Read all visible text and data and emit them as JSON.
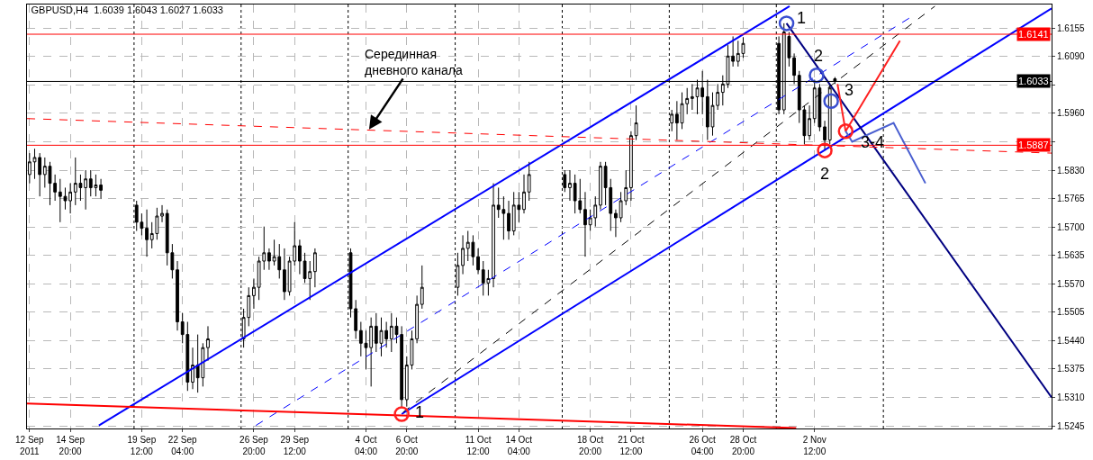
{
  "chart_data": {
    "type": "candlestick",
    "title": "GBPUSD,H4  1.6039 1.6043 1.6027 1.6033",
    "x": [
      "2011-09-12T04:00",
      "2011-09-12T12:00",
      "2011-09-12T20:00",
      "2011-09-13T04:00",
      "2011-09-13T12:00",
      "2011-09-13T20:00",
      "2011-09-14T04:00",
      "2011-09-14T12:00",
      "2011-09-14T20:00",
      "2011-09-15T04:00",
      "2011-09-15T12:00",
      "2011-09-15T20:00",
      "2011-09-16T04:00",
      "2011-09-16T12:00",
      "2011-09-16T20:00",
      "2011-09-19T04:00",
      "2011-09-19T12:00",
      "2011-09-19T20:00",
      "2011-09-20T04:00",
      "2011-09-20T12:00",
      "2011-09-20T20:00",
      "2011-09-21T04:00",
      "2011-09-21T12:00",
      "2011-09-21T20:00",
      "2011-09-22T04:00",
      "2011-09-22T12:00",
      "2011-09-22T20:00",
      "2011-09-23T04:00",
      "2011-09-23T12:00",
      "2011-09-23T20:00",
      "2011-09-26T04:00",
      "2011-09-26T12:00",
      "2011-09-26T20:00",
      "2011-09-27T04:00",
      "2011-09-27T12:00",
      "2011-09-27T20:00",
      "2011-09-28T04:00",
      "2011-09-28T12:00",
      "2011-09-28T20:00",
      "2011-09-29T04:00",
      "2011-09-29T12:00",
      "2011-09-29T20:00",
      "2011-09-30T04:00",
      "2011-09-30T12:00",
      "2011-09-30T20:00",
      "2011-10-03T04:00",
      "2011-10-03T12:00",
      "2011-10-03T20:00",
      "2011-10-04T04:00",
      "2011-10-04T12:00",
      "2011-10-04T20:00",
      "2011-10-05T04:00",
      "2011-10-05T12:00",
      "2011-10-05T20:00",
      "2011-10-06T04:00",
      "2011-10-06T12:00",
      "2011-10-06T20:00",
      "2011-10-07T04:00",
      "2011-10-07T12:00",
      "2011-10-07T20:00",
      "2011-10-10T04:00",
      "2011-10-10T12:00",
      "2011-10-10T20:00",
      "2011-10-11T04:00",
      "2011-10-11T12:00",
      "2011-10-11T20:00",
      "2011-10-12T04:00",
      "2011-10-12T12:00",
      "2011-10-12T20:00",
      "2011-10-13T04:00",
      "2011-10-13T12:00",
      "2011-10-13T20:00",
      "2011-10-14T04:00",
      "2011-10-14T12:00",
      "2011-10-14T20:00",
      "2011-10-17T04:00",
      "2011-10-17T12:00",
      "2011-10-17T20:00",
      "2011-10-18T04:00",
      "2011-10-18T12:00",
      "2011-10-18T20:00",
      "2011-10-19T04:00",
      "2011-10-19T12:00",
      "2011-10-19T20:00",
      "2011-10-20T04:00",
      "2011-10-20T12:00",
      "2011-10-20T20:00",
      "2011-10-21T04:00",
      "2011-10-21T12:00",
      "2011-10-21T20:00",
      "2011-10-24T04:00",
      "2011-10-24T12:00",
      "2011-10-24T20:00",
      "2011-10-25T04:00",
      "2011-10-25T12:00",
      "2011-10-25T20:00",
      "2011-10-26T04:00",
      "2011-10-26T12:00",
      "2011-10-26T20:00",
      "2011-10-27T04:00",
      "2011-10-27T12:00",
      "2011-10-27T20:00",
      "2011-10-28T04:00",
      "2011-10-28T12:00",
      "2011-10-28T20:00",
      "2011-10-31T04:00",
      "2011-10-31T12:00",
      "2011-10-31T20:00",
      "2011-11-01T04:00",
      "2011-11-01T12:00",
      "2011-11-01T20:00",
      "2011-11-02T04:00",
      "2011-11-02T12:00",
      "2011-11-02T20:00",
      "2011-11-03T04:00",
      "2011-11-03T12:00",
      "2011-11-03T20:00"
    ],
    "ohlc": [
      [
        1.582,
        1.5869,
        1.58,
        1.5849
      ],
      [
        1.5849,
        1.5879,
        1.581,
        1.5859
      ],
      [
        1.5859,
        1.5869,
        1.577,
        1.582
      ],
      [
        1.582,
        1.5859,
        1.579,
        1.5839
      ],
      [
        1.5839,
        1.5849,
        1.575,
        1.58
      ],
      [
        1.58,
        1.582,
        1.576,
        1.578
      ],
      [
        1.578,
        1.581,
        1.5711,
        1.577
      ],
      [
        1.577,
        1.579,
        1.574,
        1.576
      ],
      [
        1.576,
        1.58,
        1.5731,
        1.578
      ],
      [
        1.578,
        1.5859,
        1.575,
        1.58
      ],
      [
        1.58,
        1.582,
        1.576,
        1.579
      ],
      [
        1.579,
        1.583,
        1.574,
        1.581
      ],
      [
        1.581,
        1.583,
        1.577,
        1.579
      ],
      [
        1.579,
        1.582,
        1.577,
        1.5796
      ],
      [
        1.5796,
        1.581,
        1.5764,
        1.5784
      ],
      [
        1.575,
        1.576,
        1.5691,
        1.5711
      ],
      [
        1.5711,
        1.5731,
        1.5681,
        1.5697
      ],
      [
        1.5697,
        1.574,
        1.5632,
        1.5671
      ],
      [
        1.5671,
        1.5711,
        1.5651,
        1.5685
      ],
      [
        1.5685,
        1.5744,
        1.5671,
        1.5725
      ],
      [
        1.5725,
        1.575,
        1.5711,
        1.5731
      ],
      [
        1.5731,
        1.574,
        1.5612,
        1.5641
      ],
      [
        1.5641,
        1.5661,
        1.5582,
        1.5602
      ],
      [
        1.5602,
        1.5622,
        1.5463,
        1.5483
      ],
      [
        1.5483,
        1.5503,
        1.5434,
        1.5454
      ],
      [
        1.5454,
        1.5483,
        1.5325,
        1.5345
      ],
      [
        1.5345,
        1.5424,
        1.5329,
        1.5384
      ],
      [
        1.5384,
        1.5454,
        1.5321,
        1.5355
      ],
      [
        1.5355,
        1.5434,
        1.5335,
        1.5424
      ],
      [
        1.5424,
        1.5473,
        1.5394,
        1.5444
      ],
      [
        1.5444,
        1.5513,
        1.5424,
        1.5493
      ],
      [
        1.5493,
        1.5562,
        1.5473,
        1.5543
      ],
      [
        1.5543,
        1.5582,
        1.5513,
        1.5562
      ],
      [
        1.5562,
        1.5632,
        1.5533,
        1.5622
      ],
      [
        1.5622,
        1.5701,
        1.5602,
        1.5641
      ],
      [
        1.5641,
        1.5651,
        1.5602,
        1.5622
      ],
      [
        1.5622,
        1.5671,
        1.5612,
        1.5632
      ],
      [
        1.5632,
        1.5661,
        1.5582,
        1.5602
      ],
      [
        1.5602,
        1.5651,
        1.5533,
        1.5552
      ],
      [
        1.5552,
        1.5632,
        1.5543,
        1.5622
      ],
      [
        1.5622,
        1.5711,
        1.5612,
        1.5657
      ],
      [
        1.5657,
        1.5671,
        1.5592,
        1.5622
      ],
      [
        1.5622,
        1.5641,
        1.5572,
        1.5582
      ],
      [
        1.5582,
        1.5622,
        1.5533,
        1.5598
      ],
      [
        1.5598,
        1.5651,
        1.5562,
        1.5641
      ],
      [
        1.5641,
        1.5651,
        1.5493,
        1.5513
      ],
      [
        1.5513,
        1.5533,
        1.5444,
        1.5463
      ],
      [
        1.5463,
        1.5483,
        1.5404,
        1.5434
      ],
      [
        1.5434,
        1.5463,
        1.5374,
        1.5424
      ],
      [
        1.5424,
        1.5493,
        1.5335,
        1.5473
      ],
      [
        1.5473,
        1.5503,
        1.5414,
        1.5434
      ],
      [
        1.5434,
        1.5493,
        1.5404,
        1.5463
      ],
      [
        1.5463,
        1.5483,
        1.5424,
        1.5444
      ],
      [
        1.5444,
        1.5503,
        1.5414,
        1.5473
      ],
      [
        1.5473,
        1.5493,
        1.5434,
        1.5454
      ],
      [
        1.5454,
        1.5473,
        1.5286,
        1.5305
      ],
      [
        1.5305,
        1.5404,
        1.5289,
        1.5384
      ],
      [
        1.5384,
        1.5463,
        1.5374,
        1.5444
      ],
      [
        1.5444,
        1.5543,
        1.5434,
        1.5523
      ],
      [
        1.5523,
        1.5612,
        1.5513,
        1.5562
      ],
      [
        1.5562,
        1.5641,
        1.5543,
        1.5612
      ],
      [
        1.5612,
        1.5681,
        1.5592,
        1.5651
      ],
      [
        1.5651,
        1.5691,
        1.5622,
        1.5665
      ],
      [
        1.5665,
        1.5681,
        1.5612,
        1.5632
      ],
      [
        1.5632,
        1.5651,
        1.5592,
        1.5602
      ],
      [
        1.5602,
        1.5622,
        1.5543,
        1.5572
      ],
      [
        1.5572,
        1.5602,
        1.5543,
        1.5582
      ],
      [
        1.5582,
        1.58,
        1.5562,
        1.575
      ],
      [
        1.575,
        1.579,
        1.5721,
        1.574
      ],
      [
        1.574,
        1.577,
        1.5671,
        1.5731
      ],
      [
        1.5731,
        1.576,
        1.5671,
        1.5691
      ],
      [
        1.5691,
        1.578,
        1.5681,
        1.575
      ],
      [
        1.575,
        1.578,
        1.5711,
        1.574
      ],
      [
        1.574,
        1.582,
        1.5731,
        1.578
      ],
      [
        1.578,
        1.5849,
        1.576,
        1.582
      ],
      [
        1.582,
        1.583,
        1.578,
        1.579
      ],
      [
        1.579,
        1.583,
        1.576,
        1.58
      ],
      [
        1.58,
        1.582,
        1.5731,
        1.576
      ],
      [
        1.576,
        1.581,
        1.5731,
        1.574
      ],
      [
        1.574,
        1.578,
        1.5632,
        1.5705
      ],
      [
        1.5705,
        1.574,
        1.5691,
        1.5721
      ],
      [
        1.5721,
        1.577,
        1.5701,
        1.575
      ],
      [
        1.575,
        1.5849,
        1.574,
        1.5839
      ],
      [
        1.5839,
        1.5849,
        1.575,
        1.579
      ],
      [
        1.579,
        1.581,
        1.5691,
        1.5731
      ],
      [
        1.5731,
        1.574,
        1.5677,
        1.5721
      ],
      [
        1.5721,
        1.578,
        1.5711,
        1.576
      ],
      [
        1.576,
        1.583,
        1.575,
        1.579
      ],
      [
        1.579,
        1.5919,
        1.576,
        1.5909
      ],
      [
        1.5909,
        1.5978,
        1.5899,
        1.5938
      ],
      [
        1.5938,
        1.5968,
        1.5919,
        1.5958
      ],
      [
        1.5958,
        1.5988,
        1.5899,
        1.5938
      ],
      [
        1.5938,
        1.6008,
        1.5924,
        1.5982
      ],
      [
        1.5982,
        1.6018,
        1.5958,
        1.5994
      ],
      [
        1.5994,
        1.6027,
        1.5968,
        1.5998
      ],
      [
        1.5998,
        1.6037,
        1.5958,
        1.6018
      ],
      [
        1.6018,
        1.6057,
        1.5958,
        1.5998
      ],
      [
        1.5998,
        1.6037,
        1.5899,
        1.5929
      ],
      [
        1.5929,
        1.6008,
        1.5909,
        1.5978
      ],
      [
        1.5978,
        1.6027,
        1.5968,
        1.6008
      ],
      [
        1.6008,
        1.6047,
        1.5978,
        1.6027
      ],
      [
        1.6027,
        1.6116,
        1.6018,
        1.6091
      ],
      [
        1.6091,
        1.6136,
        1.6067,
        1.6079
      ],
      [
        1.6079,
        1.6126,
        1.6067,
        1.6097
      ],
      [
        1.6097,
        1.6134,
        1.6087,
        1.612
      ],
      [
        1.612,
        1.6136,
        1.5958,
        1.5968
      ],
      [
        1.5968,
        1.6166,
        1.5958,
        1.6146
      ],
      [
        1.6136,
        1.6146,
        1.6067,
        1.6087
      ],
      [
        1.6087,
        1.6097,
        1.6027,
        1.6047
      ],
      [
        1.6047,
        1.6057,
        1.5938,
        1.5968
      ],
      [
        1.5968,
        1.5978,
        1.5889,
        1.5909
      ],
      [
        1.5909,
        1.5978,
        1.5899,
        1.5948
      ],
      [
        1.5948,
        1.6037,
        1.5938,
        1.6018
      ],
      [
        1.6018,
        1.6027,
        1.5919,
        1.5929
      ],
      [
        1.5929,
        1.5943,
        1.5875,
        1.5899
      ],
      [
        1.5899,
        1.6027,
        1.5889,
        1.6018
      ],
      [
        1.6039,
        1.6043,
        1.6027,
        1.6033
      ]
    ],
    "xlim": [
      "2011-09-12T00:00",
      "2011-11-18T00:00"
    ],
    "xticks": [
      {
        "value": "2011-09-12T04:00",
        "label": "12 Sep 2011"
      },
      {
        "value": "2011-09-14T20:00",
        "label": "14 Sep 20:00"
      },
      {
        "value": "2011-09-19T12:00",
        "label": "19 Sep 12:00"
      },
      {
        "value": "2011-09-22T04:00",
        "label": "22 Sep 04:00"
      },
      {
        "value": "2011-09-26T20:00",
        "label": "26 Sep 20:00"
      },
      {
        "value": "2011-09-29T12:00",
        "label": "29 Sep 12:00"
      },
      {
        "value": "2011-10-04T04:00",
        "label": "4 Oct 04:00"
      },
      {
        "value": "2011-10-06T20:00",
        "label": "6 Oct 20:00"
      },
      {
        "value": "2011-10-11T12:00",
        "label": "11 Oct 12:00"
      },
      {
        "value": "2011-10-14T04:00",
        "label": "14 Oct 04:00"
      },
      {
        "value": "2011-10-18T20:00",
        "label": "18 Oct 20:00"
      },
      {
        "value": "2011-10-21T12:00",
        "label": "21 Oct 12:00"
      },
      {
        "value": "2011-10-26T04:00",
        "label": "26 Oct 04:00"
      },
      {
        "value": "2011-10-28T20:00",
        "label": "28 Oct 20:00"
      },
      {
        "value": "2011-11-02T12:00",
        "label": "2 Nov 12:00"
      }
    ],
    "ylim": [
      1.5239,
      1.6209
    ],
    "yticks": [
      1.6155,
      {
        "value": 1.609,
        "label": "1.6090"
      },
      {
        "value": 1.6025,
        "label": null
      },
      {
        "value": 1.596,
        "label": "1.5960"
      },
      {
        "value": 1.5895,
        "label": null
      },
      {
        "value": 1.583,
        "label": "1.5830"
      },
      1.5765,
      {
        "value": 1.57,
        "label": "1.5700"
      },
      1.5635,
      {
        "value": 1.557,
        "label": "1.5570"
      },
      1.5505,
      {
        "value": 1.544,
        "label": "1.5440"
      },
      1.5375,
      {
        "value": 1.531,
        "label": "1.5310"
      },
      1.5245
    ],
    "grid": true,
    "series": [
      {
        "type": "line",
        "color": "#0000ff",
        "line_style": "solid",
        "x": [
          "2011-09-16T16:48",
          "2011-10-31T20:48"
        ],
        "values": [
          1.5246,
          1.6205
        ]
      },
      {
        "type": "line",
        "color": "#0000ff",
        "line_style": "solid",
        "x": [
          "2011-10-06T12:00",
          "2011-11-18T00:00"
        ],
        "values": [
          1.5272,
          1.62
        ]
      },
      {
        "type": "line",
        "color": "#000080",
        "line_style": "solid",
        "x": [
          "2011-10-31T16:00",
          "2011-11-18T00:00"
        ],
        "values": [
          1.6166,
          1.531
        ]
      },
      {
        "type": "line",
        "color": "#0000ff",
        "line_style": "dashed",
        "x": [
          "2011-09-26T23:12",
          "2011-11-08T16:48"
        ],
        "values": [
          1.5246,
          1.6178
        ]
      },
      {
        "type": "line",
        "color": "#000000",
        "line_style": "dashed",
        "x": [
          "2011-10-06T14:00",
          "2011-11-10T08:48"
        ],
        "values": [
          1.5276,
          1.6205
        ]
      },
      {
        "type": "line",
        "color": "#ff0000",
        "line_style": "dashed",
        "x": [
          "2011-09-12T00:00",
          "2011-11-18T00:00"
        ],
        "values": [
          1.5948,
          1.5869
        ]
      },
      {
        "type": "line",
        "color": "#ff0000",
        "line_style": "solid",
        "x": [
          "2011-09-12T00:00",
          "2011-11-01T07:12"
        ],
        "values": [
          1.5296,
          1.524
        ]
      },
      {
        "type": "line",
        "color": "#ff2020",
        "line_style": "solid",
        "x": [
          "2011-11-04T00:00",
          "2011-11-04T12:48",
          "2011-11-08T02:00"
        ],
        "values": [
          1.6027,
          1.5919,
          1.6126
        ]
      },
      {
        "type": "line",
        "color": "#4a5fd0",
        "line_style": "solid",
        "x": [
          "2011-11-04T12:48",
          "2011-11-04T23:00",
          "2011-11-07T16:00",
          "2011-11-09T18:00"
        ],
        "values": [
          1.5919,
          1.5895,
          1.5938,
          1.58
        ]
      },
      {
        "type": "scatter",
        "marker": "circle",
        "color": "#3a4fd0",
        "x": [
          "2011-10-31T16:00",
          "2011-11-02T15:12",
          "2011-11-03T14:00"
        ],
        "values": [
          1.6166,
          1.6047,
          1.5988
        ]
      },
      {
        "type": "scatter",
        "marker": "circle",
        "color": "#ff2020",
        "x": [
          "2011-10-06T12:00",
          "2011-11-03T04:00",
          "2011-11-04T12:48"
        ],
        "values": [
          1.5272,
          1.5875,
          1.5919
        ]
      }
    ],
    "ref_lines": [
      {
        "axis": "y",
        "value": 1.6141,
        "label": "1.6141",
        "color": "#ff0000"
      },
      {
        "axis": "y",
        "value": 1.5887,
        "label": "1.5887",
        "color": "#ff0000"
      },
      {
        "axis": "y",
        "value": 1.6033,
        "label": "1.6033",
        "color": "#000000"
      },
      {
        "axis": "x",
        "value": "2011-09-19T00:00",
        "color": "#000000",
        "line_style": "dotted"
      },
      {
        "axis": "x",
        "value": "2011-09-26T00:00",
        "color": "#000000",
        "line_style": "dotted"
      },
      {
        "axis": "x",
        "value": "2011-10-03T00:00",
        "color": "#000000",
        "line_style": "dotted"
      },
      {
        "axis": "x",
        "value": "2011-10-10T00:00",
        "color": "#000000",
        "line_style": "dotted"
      },
      {
        "axis": "x",
        "value": "2011-10-17T00:00",
        "color": "#000000",
        "line_style": "dotted"
      },
      {
        "axis": "x",
        "value": "2011-10-24T00:00",
        "color": "#000000",
        "line_style": "dotted"
      },
      {
        "axis": "x",
        "value": "2011-10-31T00:00",
        "color": "#000000",
        "line_style": "dotted"
      },
      {
        "axis": "x",
        "value": "2011-11-07T00:00",
        "color": "#000000",
        "line_style": "dotted"
      }
    ],
    "annotations": [
      {
        "text": "Серединная\nдневного канала",
        "x": "2011-10-04T08:48",
        "y": 1.5923
      },
      {
        "text": "1",
        "x": "2011-10-31T16:00",
        "y": 1.6166
      },
      {
        "text": "2",
        "x": "2011-11-02T15:12",
        "y": 1.6047
      },
      {
        "text": "3",
        "x": "2011-11-03T14:00",
        "y": 1.5988
      },
      {
        "text": "2",
        "x": "2011-11-03T04:00",
        "y": 1.5875
      },
      {
        "text": "3-4",
        "x": "2011-11-04T12:48",
        "y": 1.5919
      },
      {
        "text": "1",
        "x": "2011-10-06T12:00",
        "y": 1.5272
      }
    ]
  }
}
